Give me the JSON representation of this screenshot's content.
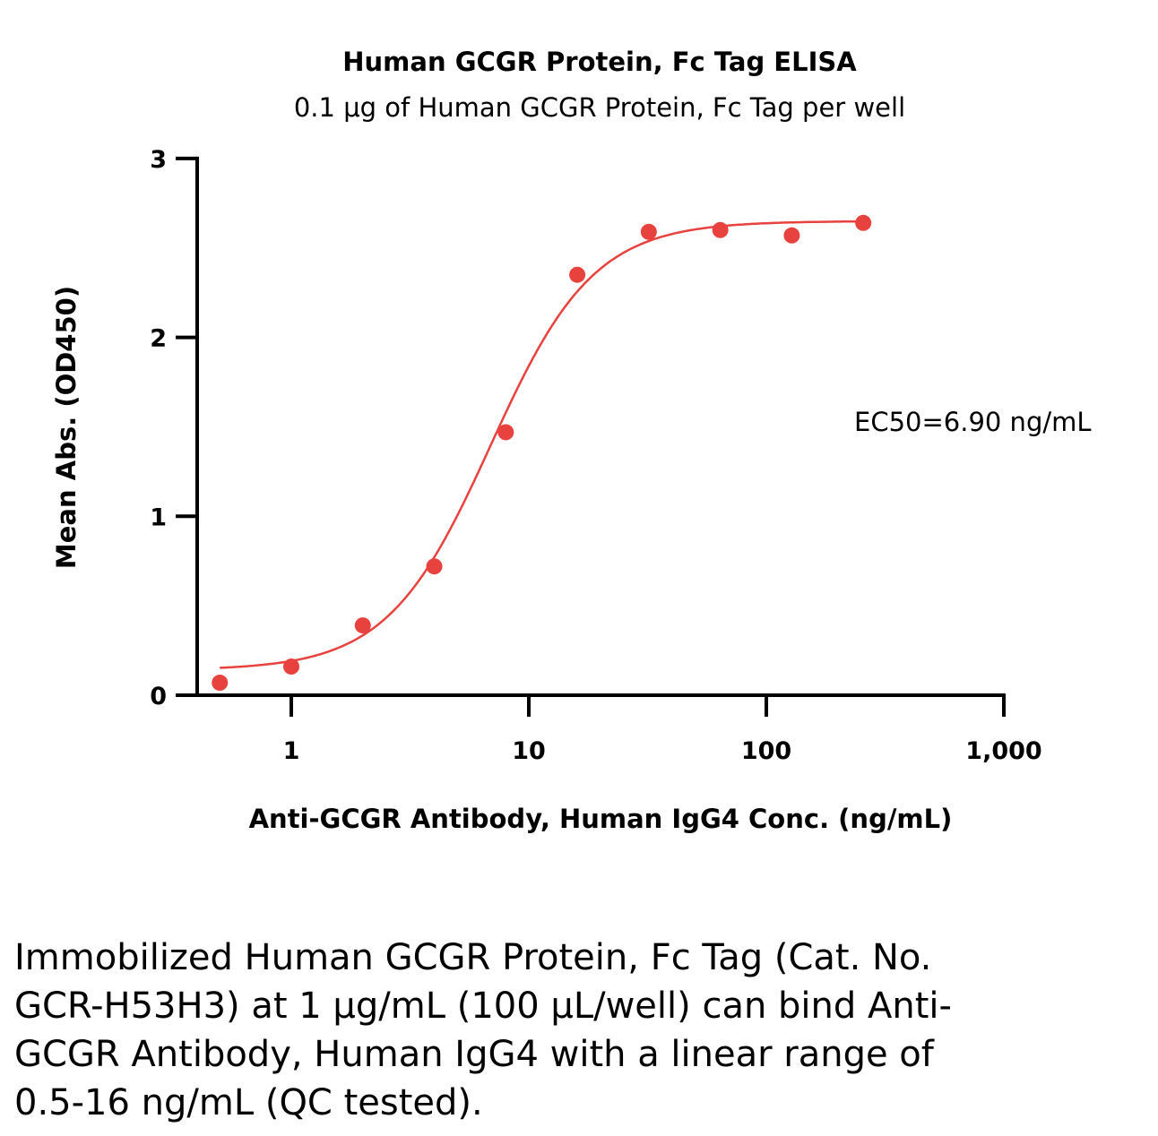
{
  "chart_data": {
    "type": "scatter",
    "title": "Human GCGR Protein, Fc Tag ELISA",
    "subtitle": "0.1 μg of Human GCGR Protein, Fc Tag per well",
    "xlabel": "Anti-GCGR Antibody, Human IgG4 Conc. (ng/mL)",
    "ylabel": "Mean Abs. (OD450)",
    "xscale": "log",
    "xlim": [
      0.4,
      1000
    ],
    "ylim": [
      0,
      3
    ],
    "xticks": [
      1,
      10,
      100,
      1000
    ],
    "xtick_labels": [
      "1",
      "10",
      "100",
      "1,000"
    ],
    "yticks": [
      0,
      1,
      2,
      3
    ],
    "ytick_labels": [
      "0",
      "1",
      "2",
      "3"
    ],
    "series": [
      {
        "name": "Anti-GCGR Antibody, Human IgG4",
        "color": "#E8423F",
        "x": [
          0.5,
          1,
          2,
          4,
          8,
          16,
          32,
          64,
          128,
          256
        ],
        "y": [
          0.07,
          0.16,
          0.39,
          0.72,
          1.47,
          2.35,
          2.59,
          2.6,
          2.57,
          2.64
        ],
        "fit": {
          "model": "4PL",
          "bottom": 0.14,
          "top": 2.65,
          "ec50": 6.9,
          "hill": 2.0
        }
      }
    ],
    "annotation": "EC50=6.90 ng/mL",
    "grid": false
  },
  "caption": "Immobilized Human GCGR Protein, Fc Tag (Cat. No. GCR-H53H3) at 1 μg/mL (100 μL/well) can bind Anti-GCGR Antibody, Human IgG4 with a linear range of 0.5-16 ng/mL (QC tested)."
}
